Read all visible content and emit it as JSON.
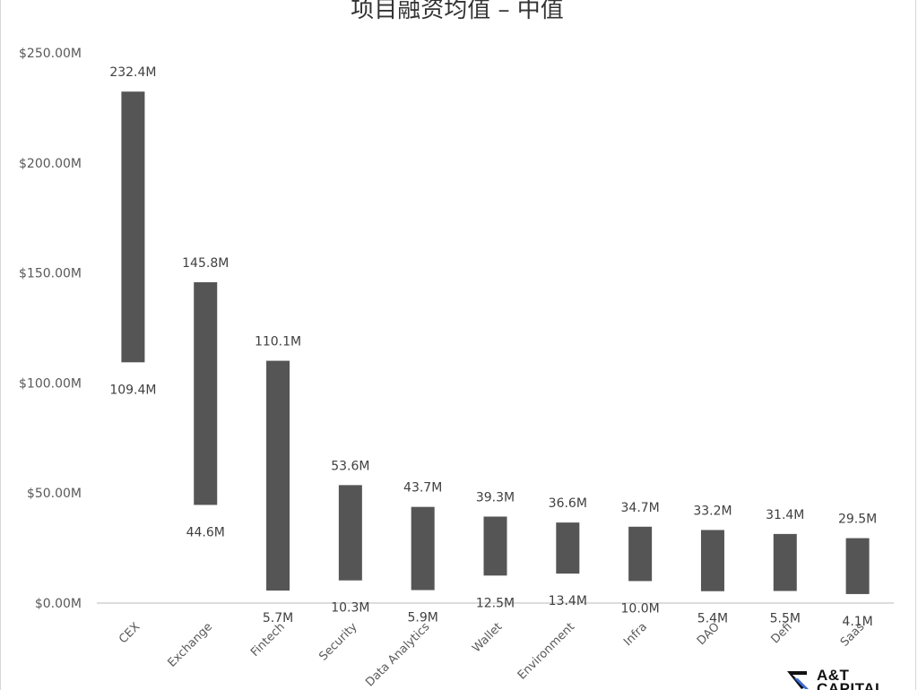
{
  "chart_data": {
    "type": "bar",
    "title": "项目融资均值 – 中值",
    "categories": [
      "CEX",
      "Exchange",
      "Fintech",
      "Security",
      "Data Analytics",
      "Wallet",
      "Environment",
      "Infra",
      "DAO",
      "Defi",
      "Saas"
    ],
    "series": [
      {
        "values_high": [
          232.4,
          145.8,
          110.1,
          53.6,
          43.7,
          39.3,
          36.6,
          34.7,
          33.2,
          31.4,
          29.5
        ]
      },
      {
        "values_low": [
          109.4,
          44.6,
          5.7,
          10.3,
          5.9,
          12.5,
          13.4,
          10.0,
          5.4,
          5.5,
          4.1
        ]
      }
    ],
    "high_labels": [
      "232.4M",
      "145.8M",
      "110.1M",
      "53.6M",
      "43.7M",
      "39.3M",
      "36.6M",
      "34.7M",
      "33.2M",
      "31.4M",
      "29.5M"
    ],
    "low_labels": [
      "109.4M",
      "44.6M",
      "5.7M",
      "10.3M",
      "5.9M",
      "12.5M",
      "13.4M",
      "10.0M",
      "5.4M",
      "5.5M",
      "4.1M"
    ],
    "y_ticks": [
      0,
      50,
      100,
      150,
      200,
      250
    ],
    "y_tick_labels": [
      "$0.00M",
      "$50.00M",
      "$100.00M",
      "$150.00M",
      "$200.00M",
      "$250.00M"
    ],
    "ylim": [
      0,
      250
    ],
    "grid": false,
    "bar_color": "#555555"
  },
  "logo": {
    "line1": "A&T",
    "line2": "CAPITAL"
  }
}
